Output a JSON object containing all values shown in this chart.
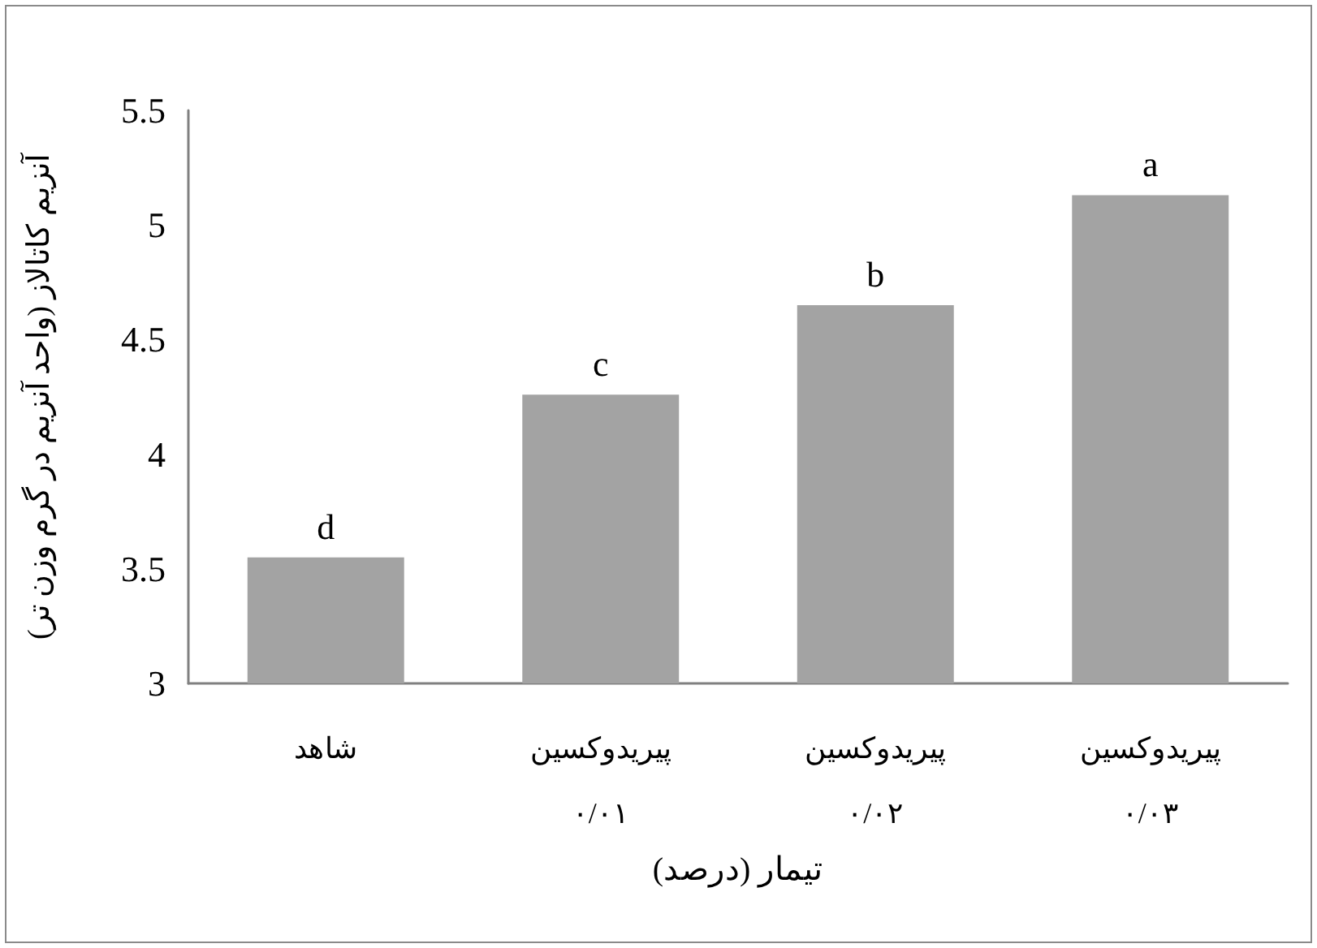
{
  "chart_data": {
    "type": "bar",
    "xlabel": "تیمار (درصد)",
    "ylabel": "آنزیم کاتالاز (واحد آنزیم در گرم وزن تر)",
    "categories": [
      "شاهد",
      "پیریدوکسین\n۰/۰۱",
      "پیریدوکسین\n۰/۰۲",
      "پیریدوکسین\n۰/۰۳"
    ],
    "values": [
      3.55,
      4.26,
      4.65,
      5.13
    ],
    "color": "#a3a3a3",
    "ylim": [
      3,
      5.5
    ],
    "yticks": [
      3,
      3.5,
      4,
      4.5,
      5,
      5.5
    ],
    "grid": false,
    "annotations": [
      {
        "text": "d",
        "x": "شاهد",
        "y": 3.55
      },
      {
        "text": "c",
        "x": "پیریدوکسین\n۰/۰۱",
        "y": 4.26
      },
      {
        "text": "b",
        "x": "پیریدوکسین\n۰/۰۲",
        "y": 4.65
      },
      {
        "text": "a",
        "x": "پیریدوکسین\n۰/۰۳",
        "y": 5.13
      }
    ]
  }
}
